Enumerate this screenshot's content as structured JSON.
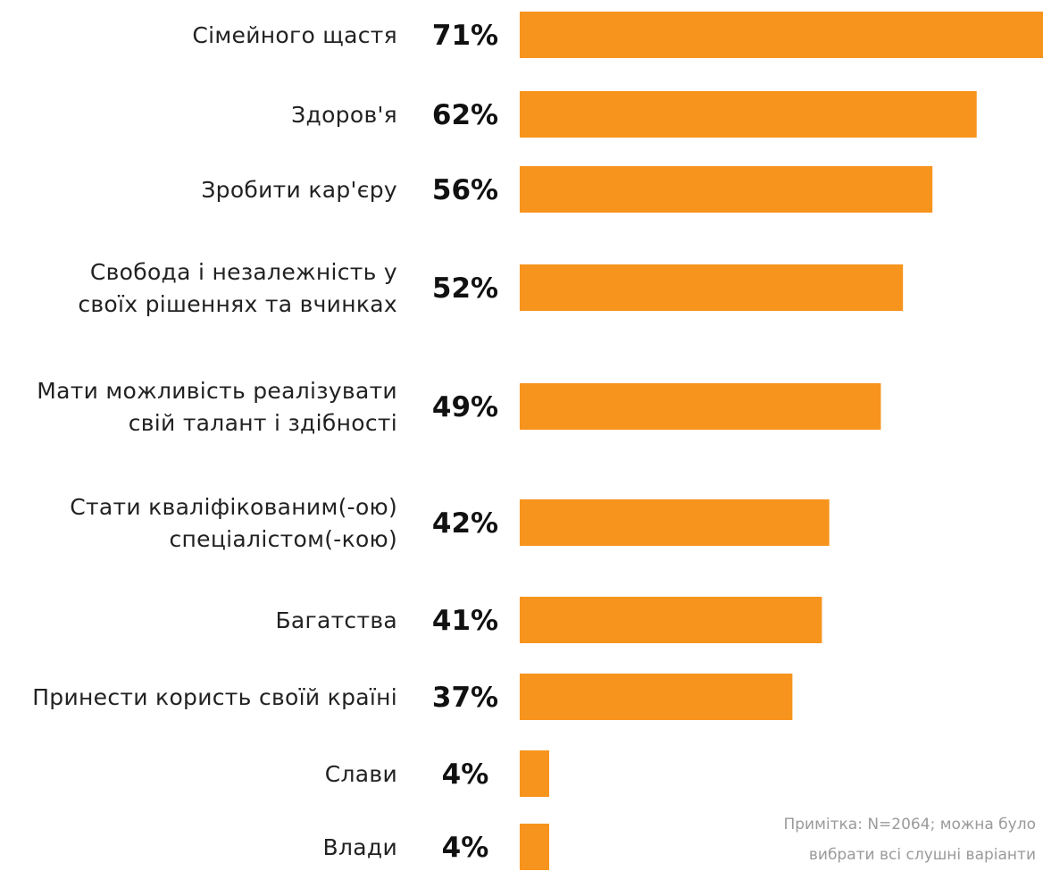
{
  "chart_data": {
    "type": "bar",
    "orientation": "horizontal",
    "bar_color": "#F7941D",
    "xlim": [
      0,
      71
    ],
    "categories": [
      [
        "Сімейного щастя"
      ],
      [
        "Здоров'я"
      ],
      [
        "Зробити кар'єру"
      ],
      [
        "Свобода і незалежність у",
        "своїх рішеннях та вчинках"
      ],
      [
        "Мати можливість реалізувати",
        "свій талант і здібності"
      ],
      [
        "Стати кваліфікованим(-ою)",
        "спеціалістом(-кою)"
      ],
      [
        "Багатства"
      ],
      [
        "Принести користь своїй країні"
      ],
      [
        "Слави"
      ],
      [
        "Влади"
      ]
    ],
    "values": [
      71,
      62,
      56,
      52,
      49,
      42,
      41,
      37,
      4,
      4
    ],
    "value_labels": [
      "71%",
      "62%",
      "56%",
      "52%",
      "49%",
      "42%",
      "41%",
      "37%",
      "4%",
      "4%"
    ],
    "note": [
      "Примітка: N=2064; можна було",
      "вибрати всі слушні варіанти"
    ]
  }
}
